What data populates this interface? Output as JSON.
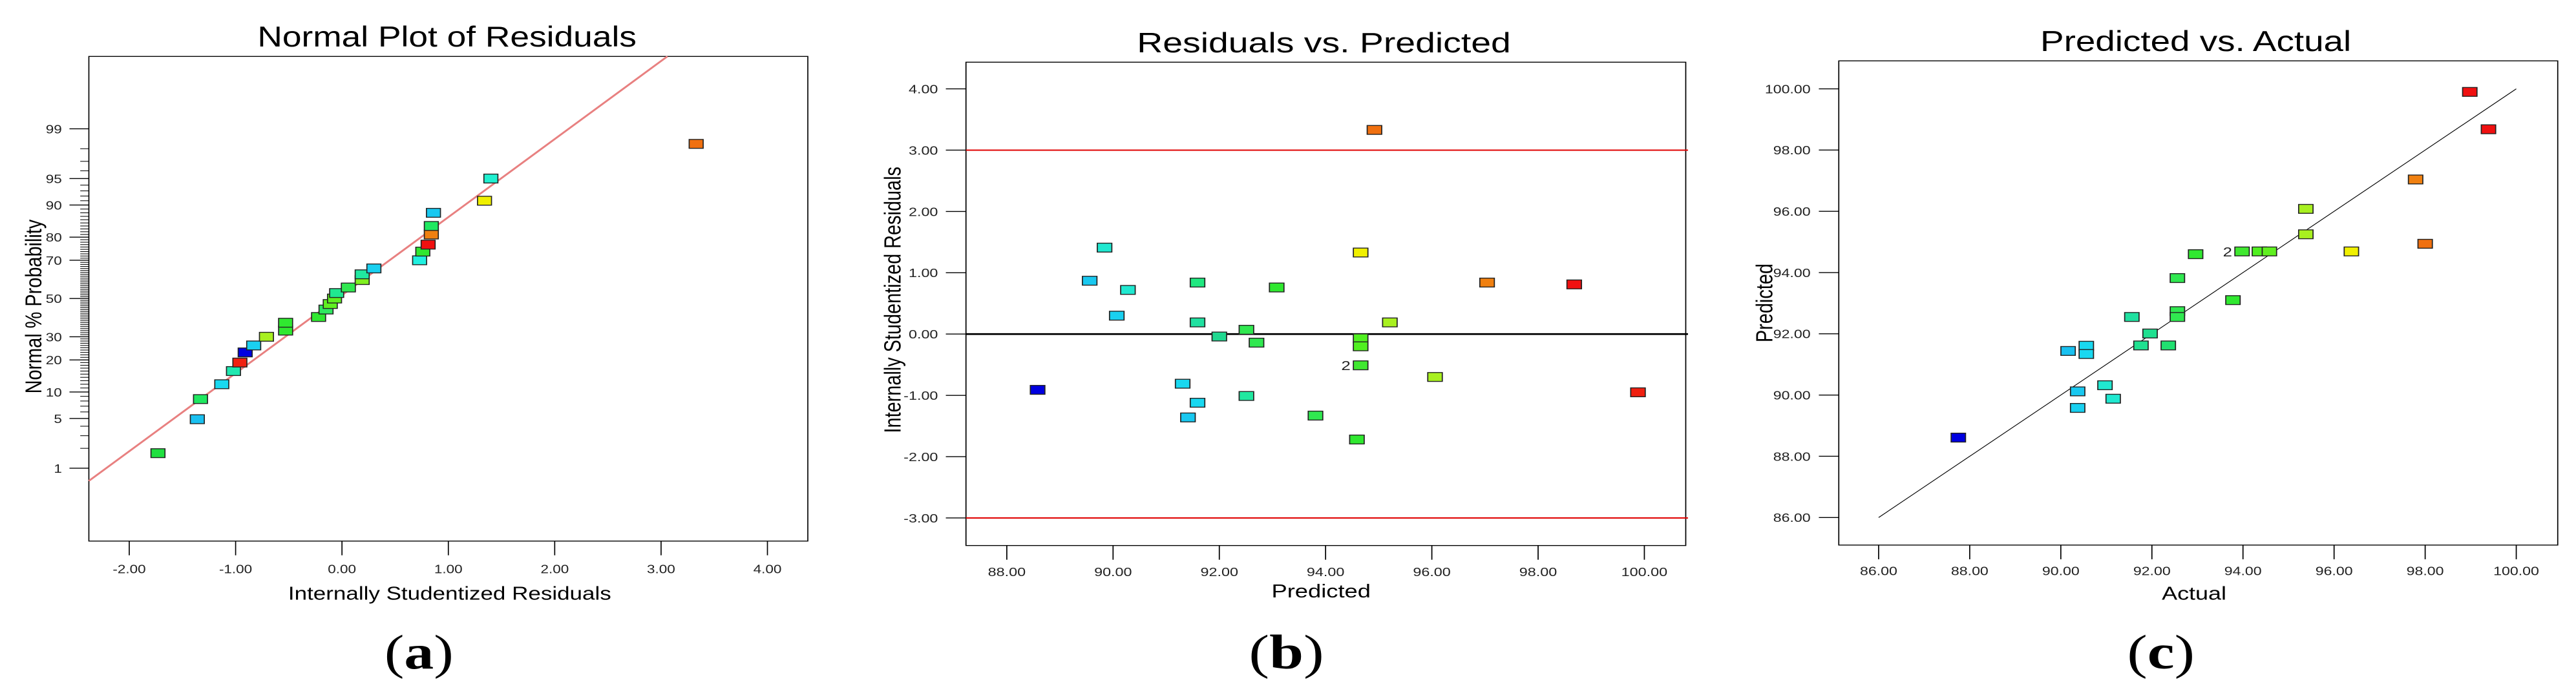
{
  "chart_data": [
    {
      "type": "scatter",
      "panel_label_open": "(",
      "panel_label_letter": "a",
      "panel_label_close": ")",
      "title": "Normal Plot of Residuals",
      "xlabel": "Internally Studentized Residuals",
      "ylabel": "Normal % Probability",
      "xlim": [
        -2.38,
        4.4
      ],
      "y_scale": "normal-probability",
      "xticks": [
        "-2.00",
        "-1.00",
        "0.00",
        "1.00",
        "2.00",
        "3.00",
        "4.00"
      ],
      "xtick_values": [
        -2,
        -1,
        0,
        1,
        2,
        3,
        4
      ],
      "yticks": [
        "1",
        "5",
        "10",
        "20",
        "30",
        "50",
        "70",
        "80",
        "90",
        "95",
        "99"
      ],
      "ytick_values": [
        1,
        5,
        10,
        20,
        30,
        50,
        70,
        80,
        90,
        95,
        99
      ],
      "fit_line": {
        "color": "#e88080",
        "points": [
          [
            -2.38,
            0.62
          ],
          [
            3.06,
            99.955
          ]
        ]
      },
      "points": [
        {
          "x": -1.73,
          "y": 1.7,
          "color": "#20e040"
        },
        {
          "x": -1.36,
          "y": 4.9,
          "color": "#19c0f0"
        },
        {
          "x": -1.33,
          "y": 8.4,
          "color": "#20e860"
        },
        {
          "x": -1.13,
          "y": 12,
          "color": "#19d8f0"
        },
        {
          "x": -1.02,
          "y": 16,
          "color": "#20e8b0"
        },
        {
          "x": -0.96,
          "y": 19,
          "color": "#f02010"
        },
        {
          "x": -0.91,
          "y": 23,
          "color": "#0000e0"
        },
        {
          "x": -0.83,
          "y": 26,
          "color": "#19d0f0"
        },
        {
          "x": -0.71,
          "y": 30,
          "color": "#a8f020"
        },
        {
          "x": -0.53,
          "y": 33,
          "color": "#30e830"
        },
        {
          "x": -0.53,
          "y": 37,
          "color": "#30e830"
        },
        {
          "x": -0.22,
          "y": 40,
          "color": "#30e830"
        },
        {
          "x": -0.15,
          "y": 44,
          "color": "#30e860"
        },
        {
          "x": -0.11,
          "y": 47,
          "color": "#60f020"
        },
        {
          "x": -0.07,
          "y": 50,
          "color": "#60f020"
        },
        {
          "x": -0.05,
          "y": 53,
          "color": "#20e890"
        },
        {
          "x": 0.06,
          "y": 56,
          "color": "#30e850"
        },
        {
          "x": 0.19,
          "y": 60,
          "color": "#80f020"
        },
        {
          "x": 0.19,
          "y": 63,
          "color": "#20e8a0"
        },
        {
          "x": 0.3,
          "y": 66,
          "color": "#19d0f0"
        },
        {
          "x": 0.73,
          "y": 70,
          "color": "#20f0e0"
        },
        {
          "x": 0.76,
          "y": 74,
          "color": "#30e830"
        },
        {
          "x": 0.81,
          "y": 77,
          "color": "#f01010"
        },
        {
          "x": 0.84,
          "y": 81,
          "color": "#f08010"
        },
        {
          "x": 0.84,
          "y": 84,
          "color": "#20e860"
        },
        {
          "x": 0.86,
          "y": 88,
          "color": "#19c8f0"
        },
        {
          "x": 1.34,
          "y": 91,
          "color": "#f0f000"
        },
        {
          "x": 1.4,
          "y": 95,
          "color": "#20f0d0"
        },
        {
          "x": 3.33,
          "y": 98.3,
          "color": "#f07010"
        }
      ]
    },
    {
      "type": "scatter",
      "panel_label_open": "(",
      "panel_label_letter": "b",
      "panel_label_close": ")",
      "title": "Residuals vs. Predicted",
      "xlabel": "Predicted",
      "ylabel": "Internally Studentized Residuals",
      "xlim": [
        87.23,
        100.78
      ],
      "ylim": [
        -3.45,
        4.43
      ],
      "xticks": [
        "88.00",
        "90.00",
        "92.00",
        "94.00",
        "96.00",
        "98.00",
        "100.00"
      ],
      "xtick_values": [
        88,
        90,
        92,
        94,
        96,
        98,
        100
      ],
      "yticks": [
        "4.00",
        "3.00",
        "2.00",
        "1.00",
        "0.00",
        "-1.00",
        "-2.00",
        "-3.00"
      ],
      "ytick_values": [
        4,
        3,
        2,
        1,
        0,
        -1,
        -2,
        -3
      ],
      "reference_lines": [
        {
          "y": 3,
          "color": "#e00000"
        },
        {
          "y": -3,
          "color": "#e00000"
        },
        {
          "y": 0,
          "color": "#000000"
        }
      ],
      "annotation": {
        "text": "2",
        "x": 94.66,
        "y": -0.51
      },
      "points": [
        {
          "x": 88.58,
          "y": -0.91,
          "color": "#0000e0"
        },
        {
          "x": 89.56,
          "y": 0.87,
          "color": "#19c8f0"
        },
        {
          "x": 89.84,
          "y": 1.41,
          "color": "#20e8d0"
        },
        {
          "x": 90.07,
          "y": 0.3,
          "color": "#19d0f0"
        },
        {
          "x": 90.28,
          "y": 0.72,
          "color": "#20e8d0"
        },
        {
          "x": 91.31,
          "y": -0.81,
          "color": "#19d8f0"
        },
        {
          "x": 91.41,
          "y": -1.36,
          "color": "#19c8f0"
        },
        {
          "x": 91.59,
          "y": -1.12,
          "color": "#19d8f0"
        },
        {
          "x": 91.59,
          "y": 0.84,
          "color": "#20e880"
        },
        {
          "x": 91.59,
          "y": 0.19,
          "color": "#20e0a0"
        },
        {
          "x": 92.0,
          "y": -0.04,
          "color": "#20d890"
        },
        {
          "x": 92.51,
          "y": 0.07,
          "color": "#30e850"
        },
        {
          "x": 92.51,
          "y": -1.01,
          "color": "#20e8a0"
        },
        {
          "x": 92.7,
          "y": -0.14,
          "color": "#30e850"
        },
        {
          "x": 93.08,
          "y": 0.76,
          "color": "#30e830"
        },
        {
          "x": 93.81,
          "y": -1.33,
          "color": "#30e850"
        },
        {
          "x": 94.59,
          "y": -1.72,
          "color": "#30e830"
        },
        {
          "x": 94.66,
          "y": 1.33,
          "color": "#f0f000"
        },
        {
          "x": 94.66,
          "y": -0.07,
          "color": "#50f020"
        },
        {
          "x": 94.66,
          "y": -0.2,
          "color": "#50f020"
        },
        {
          "x": 94.66,
          "y": -0.51,
          "color": "#40e830"
        },
        {
          "x": 94.92,
          "y": 3.33,
          "color": "#f07010"
        },
        {
          "x": 95.21,
          "y": 0.19,
          "color": "#a8f020"
        },
        {
          "x": 96.06,
          "y": -0.7,
          "color": "#a8f020"
        },
        {
          "x": 97.04,
          "y": 0.84,
          "color": "#f08010"
        },
        {
          "x": 98.68,
          "y": 0.81,
          "color": "#f01010"
        },
        {
          "x": 99.88,
          "y": -0.95,
          "color": "#f02010"
        }
      ]
    },
    {
      "type": "scatter",
      "panel_label_open": "(",
      "panel_label_letter": "c",
      "panel_label_close": ")",
      "title": "Predicted vs. Actual",
      "xlabel": "Actual",
      "ylabel": "Predicted",
      "xlim": [
        85.12,
        100.91
      ],
      "ylim": [
        85.1,
        100.91
      ],
      "xticks": [
        "86.00",
        "88.00",
        "90.00",
        "92.00",
        "94.00",
        "96.00",
        "98.00",
        "100.00"
      ],
      "xtick_values": [
        86,
        88,
        90,
        92,
        94,
        96,
        98,
        100
      ],
      "yticks": [
        "100.00",
        "98.00",
        "96.00",
        "94.00",
        "92.00",
        "90.00",
        "88.00",
        "86.00"
      ],
      "ytick_values": [
        100,
        98,
        96,
        94,
        92,
        90,
        88,
        86
      ],
      "fit_line": {
        "color": "#000000",
        "points": [
          [
            86,
            86
          ],
          [
            100,
            100
          ]
        ]
      },
      "annotation": {
        "text": "2",
        "x": 93.98,
        "y": 94.69
      },
      "points": [
        {
          "x": 87.75,
          "y": 88.61,
          "color": "#0000e0"
        },
        {
          "x": 90.16,
          "y": 91.44,
          "color": "#19c0f0"
        },
        {
          "x": 90.37,
          "y": 90.12,
          "color": "#19c8f0"
        },
        {
          "x": 90.37,
          "y": 89.58,
          "color": "#19d0f0"
        },
        {
          "x": 90.56,
          "y": 91.61,
          "color": "#19d8f0"
        },
        {
          "x": 90.56,
          "y": 91.34,
          "color": "#19d8f0"
        },
        {
          "x": 90.97,
          "y": 90.32,
          "color": "#20e8d0"
        },
        {
          "x": 91.15,
          "y": 89.88,
          "color": "#20e8d0"
        },
        {
          "x": 91.56,
          "y": 92.55,
          "color": "#20e0a0"
        },
        {
          "x": 91.76,
          "y": 91.62,
          "color": "#20e090"
        },
        {
          "x": 91.96,
          "y": 92.01,
          "color": "#20e090"
        },
        {
          "x": 92.36,
          "y": 91.62,
          "color": "#20e070"
        },
        {
          "x": 92.56,
          "y": 92.74,
          "color": "#30e850"
        },
        {
          "x": 92.56,
          "y": 92.55,
          "color": "#30e850"
        },
        {
          "x": 92.56,
          "y": 93.82,
          "color": "#30e850"
        },
        {
          "x": 92.96,
          "y": 94.6,
          "color": "#30e830"
        },
        {
          "x": 93.78,
          "y": 93.1,
          "color": "#30e830"
        },
        {
          "x": 93.98,
          "y": 94.69,
          "color": "#40e830"
        },
        {
          "x": 94.36,
          "y": 94.69,
          "color": "#50f020"
        },
        {
          "x": 94.58,
          "y": 94.69,
          "color": "#60f020"
        },
        {
          "x": 95.38,
          "y": 96.08,
          "color": "#a8f020"
        },
        {
          "x": 95.38,
          "y": 95.25,
          "color": "#a8f020"
        },
        {
          "x": 96.38,
          "y": 94.69,
          "color": "#f0f000"
        },
        {
          "x": 97.79,
          "y": 97.04,
          "color": "#f08010"
        },
        {
          "x": 98.0,
          "y": 94.94,
          "color": "#f07010"
        },
        {
          "x": 98.98,
          "y": 99.9,
          "color": "#f01010"
        },
        {
          "x": 99.39,
          "y": 98.68,
          "color": "#f01010"
        }
      ]
    }
  ]
}
